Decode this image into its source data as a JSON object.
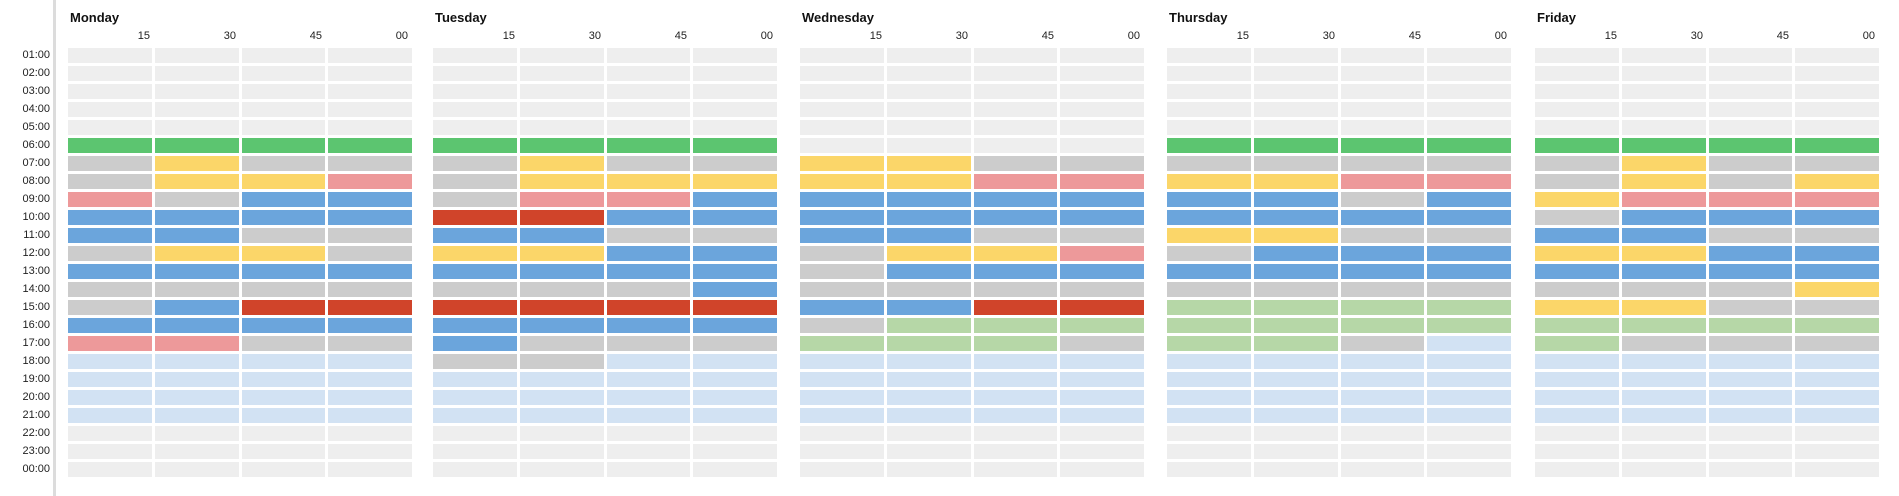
{
  "hours": [
    "01:00",
    "02:00",
    "03:00",
    "04:00",
    "05:00",
    "06:00",
    "07:00",
    "08:00",
    "09:00",
    "10:00",
    "11:00",
    "12:00",
    "13:00",
    "14:00",
    "15:00",
    "16:00",
    "17:00",
    "18:00",
    "19:00",
    "20:00",
    "21:00",
    "22:00",
    "23:00",
    "00:00"
  ],
  "minute_labels": [
    "15",
    "30",
    "45",
    "00"
  ],
  "colors": {
    "E": "#eeeeee",
    "G": "#5cc570",
    "g": "#cccccc",
    "Y": "#fbd669",
    "P": "#ed999a",
    "B": "#6ba5dc",
    "R": "#d0442a",
    "L": "#d2e2f3",
    "T": "#b6d7a7"
  },
  "days": [
    {
      "name": "Monday",
      "rows": [
        "EEEE",
        "EEEE",
        "EEEE",
        "EEEE",
        "EEEE",
        "GGGG",
        "gYgg",
        "gYYP",
        "PgBB",
        "BBBB",
        "BBgg",
        "gYYg",
        "BBBB",
        "gggg",
        "gBRR",
        "BBBB",
        "PPgg",
        "LLLL",
        "LLLL",
        "LLLL",
        "LLLL",
        "EEEE",
        "EEEE",
        "EEEE"
      ]
    },
    {
      "name": "Tuesday",
      "rows": [
        "EEEE",
        "EEEE",
        "EEEE",
        "EEEE",
        "EEEE",
        "GGGG",
        "gYgg",
        "gYYY",
        "gPPB",
        "RRBB",
        "BBgg",
        "YYBB",
        "BBBB",
        "gggB",
        "RRRR",
        "BBBB",
        "Bggg",
        "ggLL",
        "LLLL",
        "LLLL",
        "LLLL",
        "EEEE",
        "EEEE",
        "EEEE"
      ]
    },
    {
      "name": "Wednesday",
      "rows": [
        "EEEE",
        "EEEE",
        "EEEE",
        "EEEE",
        "EEEE",
        "EEEE",
        "YYgg",
        "YYPP",
        "BBBB",
        "BBBB",
        "BBgg",
        "gYYP",
        "gBBB",
        "gggg",
        "BBRR",
        "gTTT",
        "TTTg",
        "LLLL",
        "LLLL",
        "LLLL",
        "LLLL",
        "EEEE",
        "EEEE",
        "EEEE"
      ]
    },
    {
      "name": "Thursday",
      "rows": [
        "EEEE",
        "EEEE",
        "EEEE",
        "EEEE",
        "EEEE",
        "GGGG",
        "gggg",
        "YYPP",
        "BBgB",
        "BBBB",
        "YYgg",
        "gBBB",
        "BBBB",
        "gggg",
        "TTTT",
        "TTTT",
        "TTgL",
        "LLLL",
        "LLLL",
        "LLLL",
        "LLLL",
        "EEEE",
        "EEEE",
        "EEEE"
      ]
    },
    {
      "name": "Friday",
      "rows": [
        "EEEE",
        "EEEE",
        "EEEE",
        "EEEE",
        "EEEE",
        "GGGG",
        "gYgg",
        "gYgY",
        "YPPP",
        "gBBB",
        "BBgg",
        "YYBB",
        "BBBB",
        "gggY",
        "YYgg",
        "TTTT",
        "Tggg",
        "LLLL",
        "LLLL",
        "LLLL",
        "LLLL",
        "EEEE",
        "EEEE",
        "EEEE"
      ]
    }
  ]
}
